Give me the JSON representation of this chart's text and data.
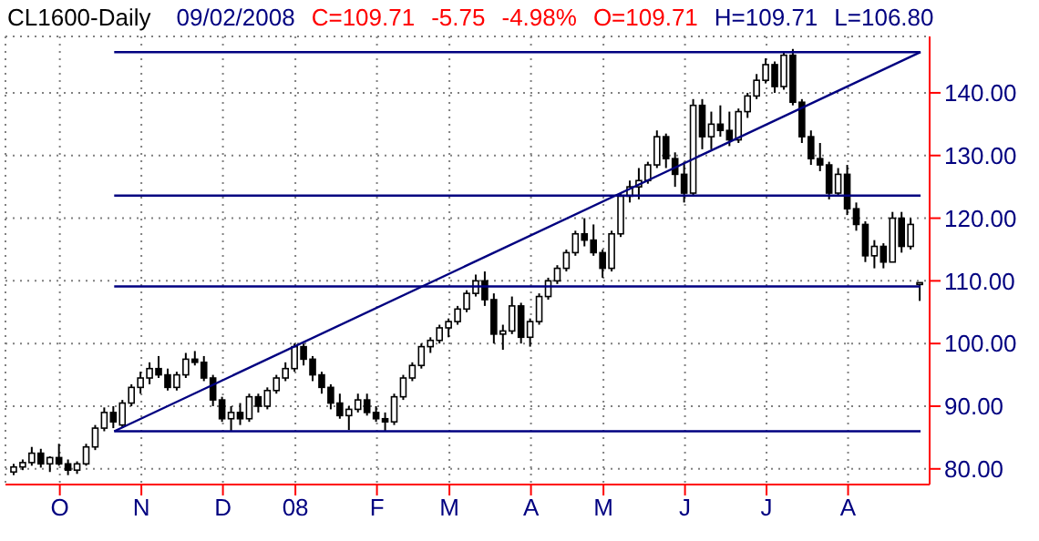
{
  "chart_data": {
    "type": "candlestick",
    "title": "CL1600-Daily",
    "subtitle": "09/02/2008",
    "annotations": [
      "C=109.71",
      "-5.75",
      "-4.98%",
      "O=109.71",
      "H=109.71",
      "L=106.80"
    ],
    "categories": [
      null,
      null,
      null,
      null,
      null,
      "O",
      null,
      null,
      null,
      null,
      null,
      null,
      null,
      null,
      "N",
      null,
      null,
      null,
      null,
      null,
      null,
      null,
      null,
      "D",
      null,
      null,
      null,
      null,
      null,
      null,
      null,
      "08",
      null,
      null,
      null,
      null,
      null,
      null,
      null,
      null,
      "F",
      null,
      null,
      null,
      null,
      null,
      null,
      null,
      "M",
      null,
      null,
      null,
      null,
      null,
      null,
      null,
      null,
      "A",
      null,
      null,
      null,
      null,
      null,
      null,
      null,
      "M",
      null,
      null,
      null,
      null,
      null,
      null,
      null,
      null,
      "J",
      null,
      null,
      null,
      null,
      null,
      null,
      null,
      null,
      "J",
      null,
      null,
      null,
      null,
      null,
      null,
      null,
      null,
      "A",
      null,
      null,
      null,
      null,
      null,
      null,
      null,
      null
    ],
    "ylim": [
      77.5,
      149
    ],
    "yticks": [
      {
        "value": 80,
        "label": "80.00"
      },
      {
        "value": 90,
        "label": "90.00"
      },
      {
        "value": 100,
        "label": "100.00"
      },
      {
        "value": 110,
        "label": "110.00"
      },
      {
        "value": 120,
        "label": "120.00"
      },
      {
        "value": 130,
        "label": "130.00"
      },
      {
        "value": 140,
        "label": "140.00"
      }
    ],
    "grid": true,
    "series": [
      {
        "type": "candlestick",
        "color": "#000000",
        "ohlc": [
          [
            79.5,
            80.8,
            79,
            80.3
          ],
          [
            80.3,
            81.5,
            79.8,
            81
          ],
          [
            81,
            83.5,
            80.5,
            82.5
          ],
          [
            82.5,
            83.2,
            80.2,
            80.8
          ],
          [
            80.8,
            82,
            79.5,
            81.8
          ],
          [
            81.8,
            84,
            80.5,
            80.8
          ],
          [
            80.8,
            81.5,
            79,
            79.8
          ],
          [
            79.8,
            81.2,
            79.2,
            80.8
          ],
          [
            80.8,
            84,
            80.5,
            83.5
          ],
          [
            83.5,
            87,
            83,
            86.5
          ],
          [
            86.5,
            89.8,
            86,
            89
          ],
          [
            89,
            90,
            86.5,
            87.5
          ],
          [
            87,
            91,
            86.5,
            90.5
          ],
          [
            90.5,
            93.5,
            90,
            93
          ],
          [
            93,
            95.5,
            92,
            94.5
          ],
          [
            94.5,
            97,
            93.5,
            96
          ],
          [
            96,
            98,
            94.5,
            95
          ],
          [
            95,
            96,
            92.5,
            93
          ],
          [
            93,
            95.5,
            92.5,
            95
          ],
          [
            95,
            98.5,
            94.5,
            97.5
          ],
          [
            97.5,
            98.8,
            96.5,
            97
          ],
          [
            97,
            98,
            94,
            94.5
          ],
          [
            94.5,
            95,
            90,
            91
          ],
          [
            91,
            91.5,
            87.5,
            88
          ],
          [
            88,
            90,
            86,
            89
          ],
          [
            89,
            90.5,
            87,
            88
          ],
          [
            88,
            92,
            87.5,
            91.5
          ],
          [
            91.5,
            92,
            89,
            90
          ],
          [
            90,
            93,
            89.5,
            92.5
          ],
          [
            92.5,
            95,
            92,
            94.5
          ],
          [
            94.5,
            97,
            94,
            96
          ],
          [
            96,
            100,
            95.5,
            99.5
          ],
          [
            99.5,
            100,
            96.5,
            97.5
          ],
          [
            97.5,
            98,
            94,
            95
          ],
          [
            95,
            95.5,
            92,
            93
          ],
          [
            93,
            93.5,
            89.5,
            90.5
          ],
          [
            90.5,
            92,
            88,
            88.5
          ],
          [
            88.5,
            90,
            86.2,
            89.5
          ],
          [
            89.5,
            92,
            89,
            91
          ],
          [
            91,
            92,
            88.5,
            89
          ],
          [
            89,
            90,
            87.5,
            88
          ],
          [
            88,
            89,
            86,
            87.5
          ],
          [
            87.5,
            92,
            87,
            91.5
          ],
          [
            91.5,
            95,
            91,
            94.5
          ],
          [
            94.5,
            97,
            94,
            96.5
          ],
          [
            96.5,
            100,
            96,
            99.5
          ],
          [
            99.5,
            101,
            98.5,
            100.5
          ],
          [
            100.5,
            103,
            100,
            102.5
          ],
          [
            102.5,
            104,
            101,
            103.5
          ],
          [
            103.5,
            106,
            103,
            105.5
          ],
          [
            105.5,
            108.5,
            105,
            108
          ],
          [
            108,
            111,
            107.5,
            110
          ],
          [
            110,
            111.5,
            106,
            107
          ],
          [
            107,
            108,
            100,
            101.5
          ],
          [
            101.5,
            103,
            99,
            102
          ],
          [
            102,
            107.5,
            101.5,
            106
          ],
          [
            106,
            106.5,
            100,
            101
          ],
          [
            101,
            104,
            99.5,
            103.5
          ],
          [
            103.5,
            108,
            103,
            107.5
          ],
          [
            107.5,
            110.5,
            107,
            110
          ],
          [
            110,
            112.5,
            109.5,
            112
          ],
          [
            112,
            115,
            111.5,
            114.5
          ],
          [
            114.5,
            118,
            114,
            117.5
          ],
          [
            117.5,
            120,
            115.5,
            116.5
          ],
          [
            116.5,
            119,
            114,
            114.5
          ],
          [
            114.5,
            115,
            110.5,
            112
          ],
          [
            112,
            118,
            111.5,
            117.5
          ],
          [
            117.5,
            124,
            117,
            123.5
          ],
          [
            123.5,
            126,
            122.5,
            125
          ],
          [
            125,
            128,
            123,
            126
          ],
          [
            126,
            129,
            125.5,
            128.5
          ],
          [
            128.5,
            134,
            128,
            133
          ],
          [
            133,
            133.5,
            128,
            129.5
          ],
          [
            129.5,
            130.5,
            125,
            127
          ],
          [
            127,
            129,
            122.5,
            124
          ],
          [
            124,
            139,
            123.5,
            138
          ],
          [
            138,
            139,
            131,
            133
          ],
          [
            133,
            137,
            131,
            135
          ],
          [
            135,
            138,
            133,
            134
          ],
          [
            134,
            137,
            131.5,
            132.5
          ],
          [
            132.5,
            137.5,
            132,
            137
          ],
          [
            137,
            140,
            136,
            139.5
          ],
          [
            139.5,
            143,
            139,
            142
          ],
          [
            142,
            145.5,
            141.5,
            144.5
          ],
          [
            144.5,
            145,
            140,
            141
          ],
          [
            141,
            146.5,
            140.5,
            146
          ],
          [
            146,
            147,
            138,
            138.5
          ],
          [
            138.5,
            139,
            132,
            133
          ],
          [
            133,
            134,
            128.5,
            129.5
          ],
          [
            129.5,
            132,
            127.5,
            128.5
          ],
          [
            128.5,
            129,
            123,
            124
          ],
          [
            124,
            128,
            123.5,
            127
          ],
          [
            127,
            128.5,
            120.5,
            121.5
          ],
          [
            121.5,
            122.5,
            118,
            119
          ],
          [
            119,
            119.5,
            113,
            114
          ],
          [
            114,
            116.5,
            112,
            115.5
          ],
          [
            115.5,
            116,
            112,
            113
          ],
          [
            113,
            121,
            113,
            120
          ],
          [
            120,
            121,
            114.5,
            115.5
          ],
          [
            115.5,
            120,
            115,
            119
          ],
          [
            109.71,
            109.71,
            106.8,
            109.71
          ]
        ]
      },
      {
        "type": "line",
        "color": "#000080",
        "values": [
          null,
          null,
          null,
          null,
          null,
          null,
          null,
          null,
          null,
          null,
          null,
          86,
          null,
          null,
          null,
          null,
          null,
          null,
          null,
          null,
          null,
          null,
          null,
          null,
          null,
          null,
          null,
          null,
          null,
          null,
          null,
          null,
          null,
          null,
          null,
          null,
          null,
          null,
          null,
          null,
          null,
          null,
          null,
          null,
          null,
          null,
          null,
          null,
          null,
          null,
          null,
          null,
          null,
          null,
          null,
          null,
          null,
          null,
          null,
          null,
          null,
          null,
          null,
          null,
          null,
          null,
          null,
          null,
          null,
          null,
          null,
          null,
          null,
          null,
          null,
          null,
          null,
          null,
          null,
          null,
          null,
          null,
          null,
          null,
          null,
          null,
          null,
          null,
          null,
          null,
          null,
          null,
          null,
          null,
          null,
          null,
          null,
          null,
          null,
          null,
          146.5
        ]
      },
      {
        "type": "line",
        "color": "#000080",
        "values": [
          null,
          null,
          null,
          null,
          null,
          null,
          null,
          null,
          null,
          null,
          null,
          86,
          86,
          86,
          86,
          86,
          86,
          86,
          86,
          86,
          86,
          86,
          86,
          86,
          86,
          86,
          86,
          86,
          86,
          86,
          86,
          86,
          86,
          86,
          86,
          86,
          86,
          86,
          86,
          86,
          86,
          86,
          86,
          86,
          86,
          86,
          86,
          86,
          86,
          86,
          86,
          86,
          86,
          86,
          86,
          86,
          86,
          86,
          86,
          86,
          86,
          86,
          86,
          86,
          86,
          86,
          86,
          86,
          86,
          86,
          86,
          86,
          86,
          86,
          86,
          86,
          86,
          86,
          86,
          86,
          86,
          86,
          86,
          86,
          86,
          86,
          86,
          86,
          86,
          86,
          86,
          86,
          86,
          86,
          86,
          86,
          86,
          86,
          86,
          86,
          86
        ]
      },
      {
        "type": "line",
        "color": "#000080",
        "values": [
          null,
          null,
          null,
          null,
          null,
          null,
          null,
          null,
          null,
          null,
          null,
          109.1,
          109.1,
          109.1,
          109.1,
          109.1,
          109.1,
          109.1,
          109.1,
          109.1,
          109.1,
          109.1,
          109.1,
          109.1,
          109.1,
          109.1,
          109.1,
          109.1,
          109.1,
          109.1,
          109.1,
          109.1,
          109.1,
          109.1,
          109.1,
          109.1,
          109.1,
          109.1,
          109.1,
          109.1,
          109.1,
          109.1,
          109.1,
          109.1,
          109.1,
          109.1,
          109.1,
          109.1,
          109.1,
          109.1,
          109.1,
          109.1,
          109.1,
          109.1,
          109.1,
          109.1,
          109.1,
          109.1,
          109.1,
          109.1,
          109.1,
          109.1,
          109.1,
          109.1,
          109.1,
          109.1,
          109.1,
          109.1,
          109.1,
          109.1,
          109.1,
          109.1,
          109.1,
          109.1,
          109.1,
          109.1,
          109.1,
          109.1,
          109.1,
          109.1,
          109.1,
          109.1,
          109.1,
          109.1,
          109.1,
          109.1,
          109.1,
          109.1,
          109.1,
          109.1,
          109.1,
          109.1,
          109.1,
          109.1,
          109.1,
          109.1,
          109.1,
          109.1,
          109.1,
          109.1,
          109.1
        ]
      },
      {
        "type": "line",
        "color": "#000080",
        "values": [
          null,
          null,
          null,
          null,
          null,
          null,
          null,
          null,
          null,
          null,
          null,
          123.6,
          123.6,
          123.6,
          123.6,
          123.6,
          123.6,
          123.6,
          123.6,
          123.6,
          123.6,
          123.6,
          123.6,
          123.6,
          123.6,
          123.6,
          123.6,
          123.6,
          123.6,
          123.6,
          123.6,
          123.6,
          123.6,
          123.6,
          123.6,
          123.6,
          123.6,
          123.6,
          123.6,
          123.6,
          123.6,
          123.6,
          123.6,
          123.6,
          123.6,
          123.6,
          123.6,
          123.6,
          123.6,
          123.6,
          123.6,
          123.6,
          123.6,
          123.6,
          123.6,
          123.6,
          123.6,
          123.6,
          123.6,
          123.6,
          123.6,
          123.6,
          123.6,
          123.6,
          123.6,
          123.6,
          123.6,
          123.6,
          123.6,
          123.6,
          123.6,
          123.6,
          123.6,
          123.6,
          123.6,
          123.6,
          123.6,
          123.6,
          123.6,
          123.6,
          123.6,
          123.6,
          123.6,
          123.6,
          123.6,
          123.6,
          123.6,
          123.6,
          123.6,
          123.6,
          123.6,
          123.6,
          123.6,
          123.6,
          123.6,
          123.6,
          123.6,
          123.6,
          123.6,
          123.6,
          123.6
        ]
      },
      {
        "type": "line",
        "color": "#000080",
        "values": [
          null,
          null,
          null,
          null,
          null,
          null,
          null,
          null,
          null,
          null,
          null,
          146.5,
          146.5,
          146.5,
          146.5,
          146.5,
          146.5,
          146.5,
          146.5,
          146.5,
          146.5,
          146.5,
          146.5,
          146.5,
          146.5,
          146.5,
          146.5,
          146.5,
          146.5,
          146.5,
          146.5,
          146.5,
          146.5,
          146.5,
          146.5,
          146.5,
          146.5,
          146.5,
          146.5,
          146.5,
          146.5,
          146.5,
          146.5,
          146.5,
          146.5,
          146.5,
          146.5,
          146.5,
          146.5,
          146.5,
          146.5,
          146.5,
          146.5,
          146.5,
          146.5,
          146.5,
          146.5,
          146.5,
          146.5,
          146.5,
          146.5,
          146.5,
          146.5,
          146.5,
          146.5,
          146.5,
          146.5,
          146.5,
          146.5,
          146.5,
          146.5,
          146.5,
          146.5,
          146.5,
          146.5,
          146.5,
          146.5,
          146.5,
          146.5,
          146.5,
          146.5,
          146.5,
          146.5,
          146.5,
          146.5,
          146.5,
          146.5,
          146.5,
          146.5,
          146.5,
          146.5,
          146.5,
          146.5,
          146.5,
          146.5,
          146.5,
          146.5,
          146.5,
          146.5,
          146.5,
          146.5
        ]
      }
    ]
  }
}
